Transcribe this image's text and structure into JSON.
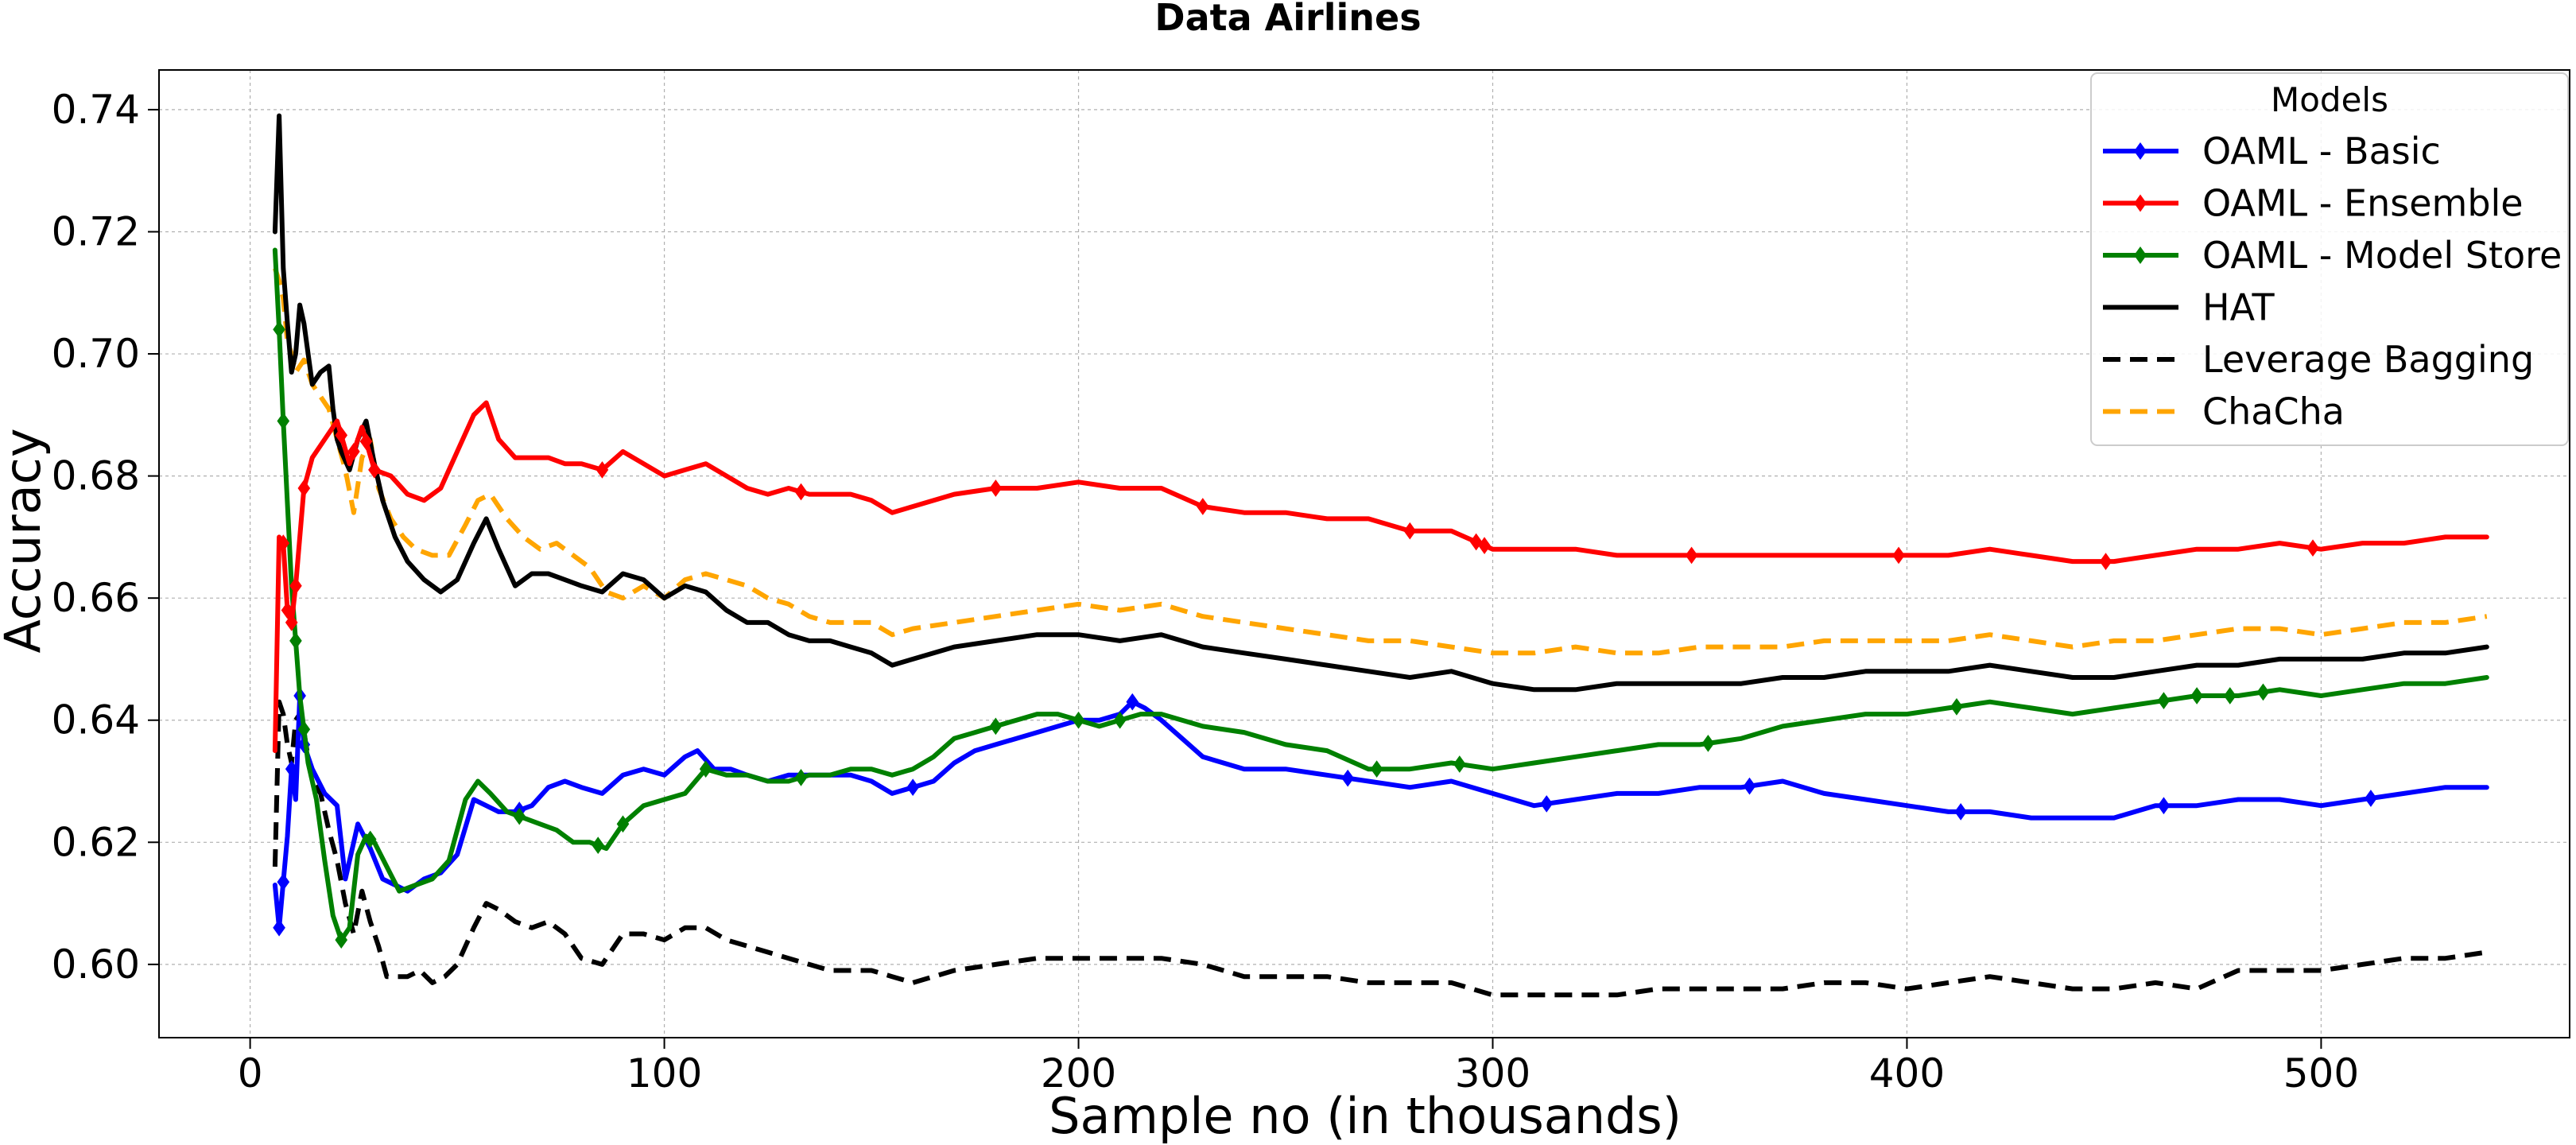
{
  "chart_data": {
    "type": "line",
    "title": "Data Airlines",
    "xlabel": "Sample no (in thousands)",
    "ylabel": "Accuracy",
    "xlim": [
      -22,
      560
    ],
    "ylim": [
      0.588,
      0.7465
    ],
    "xticks": [
      0,
      100,
      200,
      300,
      400,
      500
    ],
    "yticks": [
      0.6,
      0.62,
      0.64,
      0.66,
      0.68,
      0.7,
      0.72,
      0.74
    ],
    "xtick_labels": [
      "0",
      "100",
      "200",
      "300",
      "400",
      "500"
    ],
    "ytick_labels": [
      "0.60",
      "0.62",
      "0.64",
      "0.66",
      "0.68",
      "0.70",
      "0.72",
      "0.74"
    ],
    "grid": true,
    "legend": {
      "title": "Models",
      "position": "top-right"
    },
    "series": [
      {
        "name": "OAML - Basic",
        "color": "#0000ff",
        "style": "solid",
        "marker": "diamond",
        "x": [
          6,
          7,
          9,
          10,
          11,
          12,
          13,
          15,
          18,
          21,
          23,
          26,
          29,
          32,
          35,
          38,
          42,
          46,
          50,
          54,
          57,
          60,
          64,
          68,
          72,
          76,
          80,
          85,
          90,
          95,
          100,
          105,
          108,
          112,
          116,
          120,
          125,
          130,
          135,
          140,
          145,
          150,
          155,
          160,
          165,
          170,
          175,
          180,
          190,
          200,
          205,
          210,
          213,
          216,
          220,
          225,
          230,
          240,
          250,
          260,
          270,
          280,
          290,
          300,
          310,
          320,
          330,
          340,
          350,
          360,
          370,
          380,
          390,
          400,
          410,
          420,
          430,
          440,
          450,
          460,
          470,
          480,
          490,
          500,
          510,
          520,
          530,
          540
        ],
        "y": [
          0.613,
          0.606,
          0.621,
          0.632,
          0.627,
          0.644,
          0.636,
          0.632,
          0.628,
          0.626,
          0.614,
          0.623,
          0.619,
          0.614,
          0.613,
          0.612,
          0.614,
          0.615,
          0.618,
          0.627,
          0.626,
          0.625,
          0.625,
          0.626,
          0.629,
          0.63,
          0.629,
          0.628,
          0.631,
          0.632,
          0.631,
          0.634,
          0.635,
          0.632,
          0.632,
          0.631,
          0.63,
          0.631,
          0.631,
          0.631,
          0.631,
          0.63,
          0.628,
          0.629,
          0.63,
          0.633,
          0.635,
          0.636,
          0.638,
          0.64,
          0.64,
          0.641,
          0.643,
          0.642,
          0.64,
          0.637,
          0.634,
          0.632,
          0.632,
          0.631,
          0.63,
          0.629,
          0.63,
          0.628,
          0.626,
          0.627,
          0.628,
          0.628,
          0.629,
          0.629,
          0.63,
          0.628,
          0.627,
          0.626,
          0.625,
          0.625,
          0.624,
          0.624,
          0.624,
          0.626,
          0.626,
          0.627,
          0.627,
          0.626,
          0.627,
          0.628,
          0.629,
          0.629
        ],
        "markers_x": [
          7,
          8,
          10,
          12,
          13,
          65,
          160,
          213,
          265,
          313,
          362,
          413,
          462,
          512
        ]
      },
      {
        "name": "OAML - Ensemble",
        "color": "#ff0000",
        "style": "solid",
        "marker": "diamond",
        "x": [
          6,
          7,
          8,
          9,
          10,
          11,
          13,
          15,
          18,
          21,
          24,
          27,
          30,
          34,
          38,
          42,
          46,
          50,
          54,
          57,
          60,
          64,
          68,
          72,
          76,
          80,
          85,
          90,
          95,
          100,
          105,
          110,
          115,
          120,
          125,
          130,
          135,
          140,
          145,
          150,
          155,
          160,
          170,
          180,
          190,
          200,
          210,
          220,
          230,
          240,
          250,
          260,
          270,
          280,
          290,
          300,
          310,
          320,
          330,
          340,
          350,
          360,
          370,
          380,
          390,
          400,
          410,
          420,
          430,
          440,
          450,
          460,
          470,
          480,
          490,
          500,
          510,
          520,
          530,
          540
        ],
        "y": [
          0.635,
          0.67,
          0.669,
          0.658,
          0.656,
          0.662,
          0.678,
          0.683,
          0.686,
          0.689,
          0.682,
          0.688,
          0.681,
          0.68,
          0.677,
          0.676,
          0.678,
          0.684,
          0.69,
          0.692,
          0.686,
          0.683,
          0.683,
          0.683,
          0.682,
          0.682,
          0.681,
          0.684,
          0.682,
          0.68,
          0.681,
          0.682,
          0.68,
          0.678,
          0.677,
          0.678,
          0.677,
          0.677,
          0.677,
          0.676,
          0.674,
          0.675,
          0.677,
          0.678,
          0.678,
          0.679,
          0.678,
          0.678,
          0.675,
          0.674,
          0.674,
          0.673,
          0.673,
          0.671,
          0.671,
          0.668,
          0.668,
          0.668,
          0.667,
          0.667,
          0.667,
          0.667,
          0.667,
          0.667,
          0.667,
          0.667,
          0.667,
          0.668,
          0.667,
          0.666,
          0.666,
          0.667,
          0.668,
          0.668,
          0.669,
          0.668,
          0.669,
          0.669,
          0.67,
          0.67
        ],
        "markers_x": [
          8,
          9,
          10,
          11,
          13,
          22,
          25,
          28,
          30,
          85,
          133,
          180,
          230,
          280,
          296,
          298,
          348,
          398,
          448,
          498
        ]
      },
      {
        "name": "OAML - Model Store",
        "color": "#008000",
        "style": "solid",
        "marker": "diamond",
        "x": [
          6,
          7,
          8,
          10,
          12,
          14,
          16,
          18,
          20,
          22,
          24,
          26,
          28,
          30,
          33,
          36,
          40,
          44,
          48,
          52,
          55,
          58,
          62,
          66,
          70,
          74,
          78,
          82,
          86,
          90,
          95,
          100,
          105,
          110,
          115,
          120,
          125,
          130,
          135,
          140,
          145,
          150,
          155,
          160,
          165,
          170,
          175,
          180,
          185,
          190,
          195,
          200,
          205,
          210,
          215,
          220,
          225,
          230,
          240,
          250,
          260,
          270,
          280,
          290,
          300,
          310,
          320,
          330,
          340,
          350,
          360,
          370,
          380,
          390,
          400,
          410,
          420,
          430,
          440,
          450,
          460,
          470,
          480,
          490,
          500,
          510,
          520,
          530,
          540
        ],
        "y": [
          0.717,
          0.704,
          0.689,
          0.662,
          0.644,
          0.633,
          0.627,
          0.617,
          0.608,
          0.604,
          0.606,
          0.618,
          0.621,
          0.62,
          0.616,
          0.612,
          0.613,
          0.614,
          0.617,
          0.627,
          0.63,
          0.628,
          0.625,
          0.624,
          0.623,
          0.622,
          0.62,
          0.62,
          0.619,
          0.623,
          0.626,
          0.627,
          0.628,
          0.632,
          0.631,
          0.631,
          0.63,
          0.63,
          0.631,
          0.631,
          0.632,
          0.632,
          0.631,
          0.632,
          0.634,
          0.637,
          0.638,
          0.639,
          0.64,
          0.641,
          0.641,
          0.64,
          0.639,
          0.64,
          0.641,
          0.641,
          0.64,
          0.639,
          0.638,
          0.636,
          0.635,
          0.632,
          0.632,
          0.633,
          0.632,
          0.633,
          0.634,
          0.635,
          0.636,
          0.636,
          0.637,
          0.639,
          0.64,
          0.641,
          0.641,
          0.642,
          0.643,
          0.642,
          0.641,
          0.642,
          0.643,
          0.644,
          0.644,
          0.645,
          0.644,
          0.645,
          0.646,
          0.646,
          0.647
        ],
        "markers_x": [
          7,
          8,
          11,
          13,
          22,
          29,
          65,
          84,
          90,
          110,
          133,
          180,
          200,
          210,
          272,
          292,
          352,
          412,
          462,
          470,
          478,
          486
        ]
      },
      {
        "name": "HAT",
        "color": "#000000",
        "style": "solid",
        "marker": "none",
        "x": [
          6,
          7,
          8,
          9,
          10,
          11,
          12,
          13,
          15,
          17,
          19,
          20,
          21,
          22,
          24,
          26,
          28,
          30,
          32,
          35,
          38,
          42,
          46,
          50,
          54,
          57,
          60,
          64,
          68,
          72,
          76,
          80,
          85,
          90,
          95,
          100,
          105,
          110,
          115,
          120,
          125,
          130,
          135,
          140,
          145,
          150,
          155,
          160,
          170,
          180,
          190,
          200,
          210,
          220,
          230,
          240,
          250,
          260,
          270,
          280,
          290,
          300,
          310,
          320,
          330,
          340,
          350,
          360,
          370,
          380,
          390,
          400,
          410,
          420,
          430,
          440,
          450,
          460,
          470,
          480,
          490,
          500,
          510,
          520,
          530,
          540
        ],
        "y": [
          0.72,
          0.739,
          0.714,
          0.705,
          0.697,
          0.7,
          0.708,
          0.705,
          0.695,
          0.697,
          0.698,
          0.691,
          0.686,
          0.684,
          0.681,
          0.686,
          0.689,
          0.682,
          0.676,
          0.67,
          0.666,
          0.663,
          0.661,
          0.663,
          0.669,
          0.673,
          0.668,
          0.662,
          0.664,
          0.664,
          0.663,
          0.662,
          0.661,
          0.664,
          0.663,
          0.66,
          0.662,
          0.661,
          0.658,
          0.656,
          0.656,
          0.654,
          0.653,
          0.653,
          0.652,
          0.651,
          0.649,
          0.65,
          0.652,
          0.653,
          0.654,
          0.654,
          0.653,
          0.654,
          0.652,
          0.651,
          0.65,
          0.649,
          0.648,
          0.647,
          0.648,
          0.646,
          0.645,
          0.645,
          0.646,
          0.646,
          0.646,
          0.646,
          0.647,
          0.647,
          0.648,
          0.648,
          0.648,
          0.649,
          0.648,
          0.647,
          0.647,
          0.648,
          0.649,
          0.649,
          0.65,
          0.65,
          0.65,
          0.651,
          0.651,
          0.652
        ]
      },
      {
        "name": "Leverage Bagging",
        "color": "#000000",
        "style": "dashed",
        "marker": "none",
        "x": [
          6,
          7,
          8,
          9,
          10,
          11,
          12,
          13,
          15,
          17,
          19,
          21,
          23,
          25,
          27,
          29,
          31,
          33,
          35,
          38,
          41,
          44,
          47,
          50,
          54,
          57,
          60,
          64,
          68,
          72,
          76,
          80,
          85,
          90,
          95,
          100,
          105,
          110,
          115,
          120,
          125,
          130,
          135,
          140,
          145,
          150,
          155,
          160,
          170,
          180,
          190,
          200,
          210,
          220,
          230,
          240,
          250,
          260,
          270,
          280,
          290,
          300,
          310,
          320,
          330,
          340,
          350,
          360,
          370,
          380,
          390,
          400,
          410,
          420,
          430,
          440,
          450,
          460,
          470,
          480,
          490,
          500,
          510,
          520,
          530,
          540
        ],
        "y": [
          0.616,
          0.643,
          0.641,
          0.636,
          0.633,
          0.64,
          0.641,
          0.638,
          0.63,
          0.628,
          0.622,
          0.617,
          0.61,
          0.605,
          0.612,
          0.607,
          0.603,
          0.598,
          0.598,
          0.598,
          0.599,
          0.597,
          0.598,
          0.6,
          0.606,
          0.61,
          0.609,
          0.607,
          0.606,
          0.607,
          0.605,
          0.601,
          0.6,
          0.605,
          0.605,
          0.604,
          0.606,
          0.606,
          0.604,
          0.603,
          0.602,
          0.601,
          0.6,
          0.599,
          0.599,
          0.599,
          0.598,
          0.597,
          0.599,
          0.6,
          0.601,
          0.601,
          0.601,
          0.601,
          0.6,
          0.598,
          0.598,
          0.598,
          0.597,
          0.597,
          0.597,
          0.595,
          0.595,
          0.595,
          0.595,
          0.596,
          0.596,
          0.596,
          0.596,
          0.597,
          0.597,
          0.596,
          0.597,
          0.598,
          0.597,
          0.596,
          0.596,
          0.597,
          0.596,
          0.599,
          0.599,
          0.599,
          0.6,
          0.601,
          0.601,
          0.602
        ]
      },
      {
        "name": "ChaCha",
        "color": "#ffa500",
        "style": "dashed",
        "marker": "none",
        "x": [
          6,
          7,
          8,
          9,
          10,
          11,
          13,
          15,
          17,
          19,
          21,
          23,
          25,
          27,
          29,
          31,
          34,
          37,
          40,
          44,
          48,
          52,
          55,
          58,
          62,
          66,
          70,
          74,
          78,
          82,
          86,
          90,
          95,
          100,
          105,
          110,
          115,
          120,
          125,
          130,
          135,
          140,
          145,
          150,
          155,
          160,
          170,
          180,
          190,
          200,
          210,
          220,
          230,
          240,
          250,
          260,
          270,
          280,
          290,
          300,
          310,
          320,
          330,
          340,
          350,
          360,
          370,
          380,
          390,
          400,
          410,
          420,
          430,
          440,
          450,
          460,
          470,
          480,
          490,
          500,
          510,
          520,
          530,
          540
        ],
        "y": [
          0.714,
          0.712,
          0.709,
          0.702,
          0.7,
          0.697,
          0.699,
          0.695,
          0.693,
          0.691,
          0.686,
          0.681,
          0.674,
          0.683,
          0.686,
          0.678,
          0.673,
          0.67,
          0.668,
          0.667,
          0.667,
          0.672,
          0.676,
          0.677,
          0.673,
          0.67,
          0.668,
          0.669,
          0.667,
          0.665,
          0.661,
          0.66,
          0.662,
          0.66,
          0.663,
          0.664,
          0.663,
          0.662,
          0.66,
          0.659,
          0.657,
          0.656,
          0.656,
          0.656,
          0.654,
          0.655,
          0.656,
          0.657,
          0.658,
          0.659,
          0.658,
          0.659,
          0.657,
          0.656,
          0.655,
          0.654,
          0.653,
          0.653,
          0.652,
          0.651,
          0.651,
          0.652,
          0.651,
          0.651,
          0.652,
          0.652,
          0.652,
          0.653,
          0.653,
          0.653,
          0.653,
          0.654,
          0.653,
          0.652,
          0.653,
          0.653,
          0.654,
          0.655,
          0.655,
          0.654,
          0.655,
          0.656,
          0.656,
          0.657
        ]
      }
    ]
  }
}
